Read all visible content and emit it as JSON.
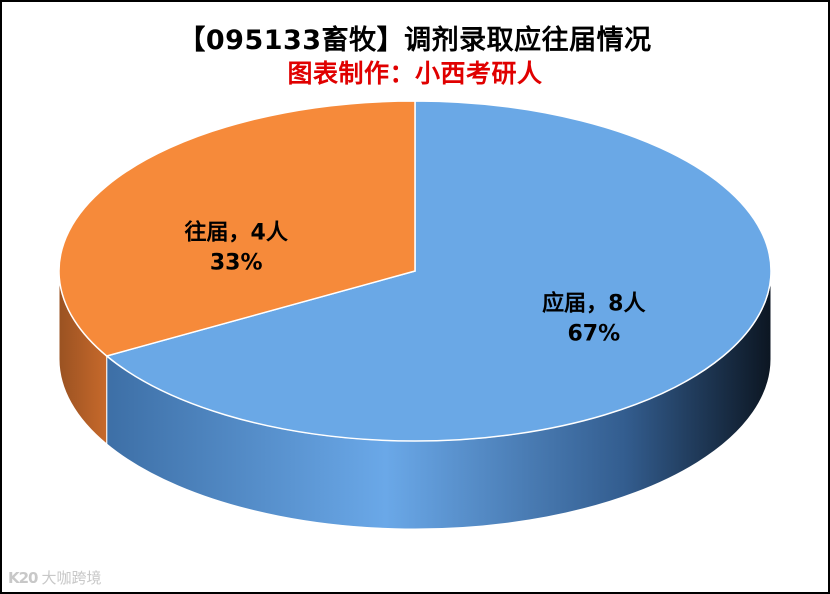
{
  "chart_data": {
    "type": "pie",
    "title": "【095133畜牧】调剂录取应往届情况",
    "subtitle": "图表制作：小西考研人",
    "slices": [
      {
        "label": "应届",
        "value": 8,
        "unit": "人",
        "percent": "67%",
        "color": "#6aa8e6"
      },
      {
        "label": "往届",
        "value": 4,
        "unit": "人",
        "percent": "33%",
        "color": "#f68a3a"
      }
    ],
    "style": "3d",
    "legend": "none"
  },
  "watermark": {
    "logo": "K20",
    "text": "大咖跨境"
  }
}
